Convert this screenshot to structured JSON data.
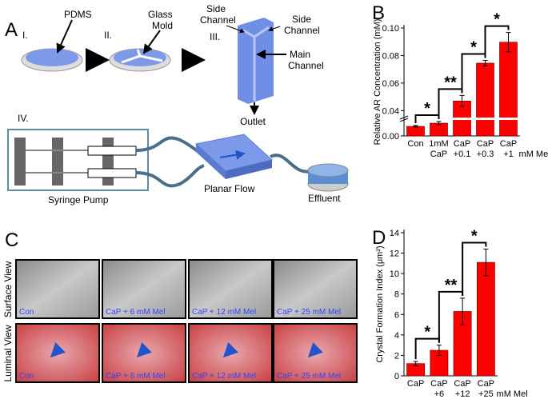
{
  "panel_labels": [
    "A",
    "B",
    "C",
    "D"
  ],
  "panel_a": {
    "steps": [
      "I.",
      "II.",
      "III.",
      "IV."
    ],
    "labels": {
      "pdms": "PDMS",
      "glass_mold": [
        "Glass",
        "Mold"
      ],
      "side_channel_left": [
        "Side",
        "Channel"
      ],
      "side_channel_right": [
        "Side",
        "Channel"
      ],
      "main_channel": [
        "Main",
        "Channel"
      ],
      "outlet": "Outlet",
      "syringe_pump": "Syringe Pump",
      "planar_flow": "Planar Flow",
      "effluent": "Effluent"
    }
  },
  "panel_c": {
    "row_labels": [
      "Surface View",
      "Luminal View"
    ],
    "captions": [
      "Con",
      "CaP + 6 mM Mel",
      "CaP + 12 mM Mel",
      "CaP + 25 mM Mel"
    ]
  },
  "chart_data": [
    {
      "type": "bar",
      "y_label": "Relative AR Concentration (mM)",
      "categories": [
        "Con",
        "1mM",
        "CaP",
        "CaP",
        "CaP"
      ],
      "sub_labels": [
        null,
        "CaP",
        "+0.1",
        "+0.3",
        "+1"
      ],
      "x_suffix": "mM Mel",
      "values": [
        0.006,
        0.008,
        0.047,
        0.0745,
        0.0897
      ],
      "errors": [
        0.0005,
        0.001,
        0.004,
        0.002,
        0.007
      ],
      "color": "#ff0000",
      "ylim": [
        0,
        0.1
      ],
      "ybreak": [
        0.01,
        0.035
      ],
      "yticks": [
        {
          "value": 0,
          "label": "0.00"
        },
        0.04,
        0.06,
        0.08,
        {
          "value": 0.1,
          "label": "0.10"
        }
      ],
      "significance": [
        "*",
        "**",
        "*",
        "*"
      ]
    },
    {
      "type": "bar",
      "y_label": "Crystal Formation Index (μm²)",
      "categories": [
        "CaP",
        "CaP",
        "CaP",
        "CaP"
      ],
      "sub_labels": [
        null,
        "+6",
        "+12",
        "+25"
      ],
      "x_suffix": "mM Mel",
      "values": [
        1.2,
        2.5,
        6.3,
        11.1
      ],
      "errors": [
        0.2,
        0.5,
        1.3,
        1.3
      ],
      "color": "#ff0000",
      "ylim": [
        0,
        14
      ],
      "yticks": [
        0,
        2,
        4,
        6,
        8,
        10,
        12,
        14
      ],
      "significance": [
        "*",
        "**",
        "*"
      ]
    }
  ]
}
